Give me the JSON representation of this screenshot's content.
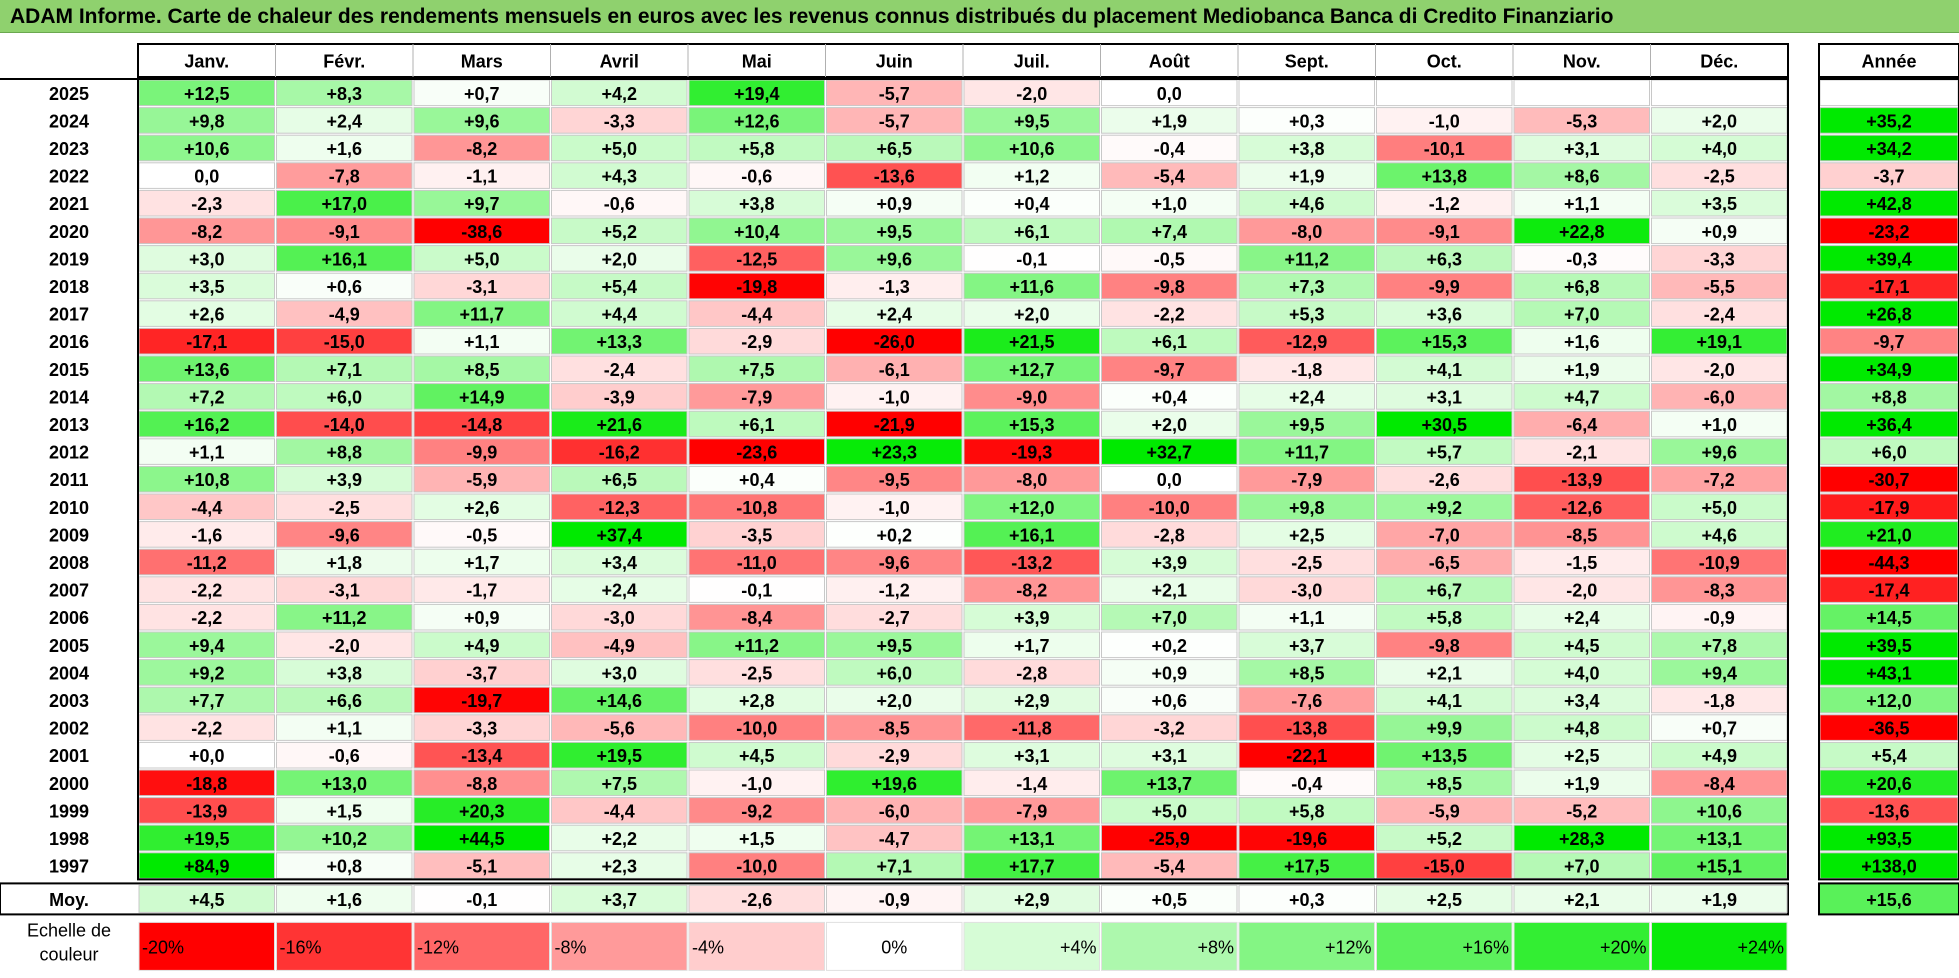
{
  "title": "ADAM Informe. Carte de chaleur des rendements mensuels en euros avec les revenus connus distribués du placement Mediobanca Banca di Credito Finanziario",
  "chart_data": {
    "type": "heatmap",
    "title": "ADAM Informe. Carte de chaleur des rendements mensuels en euros avec les revenus connus distribués du placement Mediobanca Banca di Credito Finanziario",
    "columns": [
      "Janv.",
      "Févr.",
      "Mars",
      "Avril",
      "Mai",
      "Juin",
      "Juil.",
      "Août",
      "Sept.",
      "Oct.",
      "Nov.",
      "Déc."
    ],
    "annual_header": "Année",
    "rows": [
      {
        "year": "2025",
        "months": [
          "+12,5",
          "+8,3",
          "+0,7",
          "+4,2",
          "+19,4",
          "-5,7",
          "-2,0",
          "0,0",
          "",
          "",
          "",
          ""
        ],
        "annual": ""
      },
      {
        "year": "2024",
        "months": [
          "+9,8",
          "+2,4",
          "+9,6",
          "-3,3",
          "+12,6",
          "-5,7",
          "+9,5",
          "+1,9",
          "+0,3",
          "-1,0",
          "-5,3",
          "+2,0"
        ],
        "annual": "+35,2"
      },
      {
        "year": "2023",
        "months": [
          "+10,6",
          "+1,6",
          "-8,2",
          "+5,0",
          "+5,8",
          "+6,5",
          "+10,6",
          "-0,4",
          "+3,8",
          "-10,1",
          "+3,1",
          "+4,0"
        ],
        "annual": "+34,2"
      },
      {
        "year": "2022",
        "months": [
          "0,0",
          "-7,8",
          "-1,1",
          "+4,3",
          "-0,6",
          "-13,6",
          "+1,2",
          "-5,4",
          "+1,9",
          "+13,8",
          "+8,6",
          "-2,5"
        ],
        "annual": "-3,7"
      },
      {
        "year": "2021",
        "months": [
          "-2,3",
          "+17,0",
          "+9,7",
          "-0,6",
          "+3,8",
          "+0,9",
          "+0,4",
          "+1,0",
          "+4,6",
          "-1,2",
          "+1,1",
          "+3,5"
        ],
        "annual": "+42,8"
      },
      {
        "year": "2020",
        "months": [
          "-8,2",
          "-9,1",
          "-38,6",
          "+5,2",
          "+10,4",
          "+9,5",
          "+6,1",
          "+7,4",
          "-8,0",
          "-9,1",
          "+22,8",
          "+0,9"
        ],
        "annual": "-23,2"
      },
      {
        "year": "2019",
        "months": [
          "+3,0",
          "+16,1",
          "+5,0",
          "+2,0",
          "-12,5",
          "+9,6",
          "-0,1",
          "-0,5",
          "+11,2",
          "+6,3",
          "-0,3",
          "-3,3"
        ],
        "annual": "+39,4"
      },
      {
        "year": "2018",
        "months": [
          "+3,5",
          "+0,6",
          "-3,1",
          "+5,4",
          "-19,8",
          "-1,3",
          "+11,6",
          "-9,8",
          "+7,3",
          "-9,9",
          "+6,8",
          "-5,5"
        ],
        "annual": "-17,1"
      },
      {
        "year": "2017",
        "months": [
          "+2,6",
          "-4,9",
          "+11,7",
          "+4,4",
          "-4,4",
          "+2,4",
          "+2,0",
          "-2,2",
          "+5,3",
          "+3,6",
          "+7,0",
          "-2,4"
        ],
        "annual": "+26,8"
      },
      {
        "year": "2016",
        "months": [
          "-17,1",
          "-15,0",
          "+1,1",
          "+13,3",
          "-2,9",
          "-26,0",
          "+21,5",
          "+6,1",
          "-12,9",
          "+15,3",
          "+1,6",
          "+19,1"
        ],
        "annual": "-9,7"
      },
      {
        "year": "2015",
        "months": [
          "+13,6",
          "+7,1",
          "+8,5",
          "-2,4",
          "+7,5",
          "-6,1",
          "+12,7",
          "-9,7",
          "-1,8",
          "+4,1",
          "+1,9",
          "-2,0"
        ],
        "annual": "+34,9"
      },
      {
        "year": "2014",
        "months": [
          "+7,2",
          "+6,0",
          "+14,9",
          "-3,9",
          "-7,9",
          "-1,0",
          "-9,0",
          "+0,4",
          "+2,4",
          "+3,1",
          "+4,7",
          "-6,0"
        ],
        "annual": "+8,8"
      },
      {
        "year": "2013",
        "months": [
          "+16,2",
          "-14,0",
          "-14,8",
          "+21,6",
          "+6,1",
          "-21,9",
          "+15,3",
          "+2,0",
          "+9,5",
          "+30,5",
          "-6,4",
          "+1,0"
        ],
        "annual": "+36,4"
      },
      {
        "year": "2012",
        "months": [
          "+1,1",
          "+8,8",
          "-9,9",
          "-16,2",
          "-23,6",
          "+23,3",
          "-19,3",
          "+32,7",
          "+11,7",
          "+5,7",
          "-2,1",
          "+9,6"
        ],
        "annual": "+6,0"
      },
      {
        "year": "2011",
        "months": [
          "+10,8",
          "+3,9",
          "-5,9",
          "+6,5",
          "+0,4",
          "-9,5",
          "-8,0",
          "0,0",
          "-7,9",
          "-2,6",
          "-13,9",
          "-7,2"
        ],
        "annual": "-30,7"
      },
      {
        "year": "2010",
        "months": [
          "-4,4",
          "-2,5",
          "+2,6",
          "-12,3",
          "-10,8",
          "-1,0",
          "+12,0",
          "-10,0",
          "+9,8",
          "+9,2",
          "-12,6",
          "+5,0"
        ],
        "annual": "-17,9"
      },
      {
        "year": "2009",
        "months": [
          "-1,6",
          "-9,6",
          "-0,5",
          "+37,4",
          "-3,5",
          "+0,2",
          "+16,1",
          "-2,8",
          "+2,5",
          "-7,0",
          "-8,5",
          "+4,6"
        ],
        "annual": "+21,0"
      },
      {
        "year": "2008",
        "months": [
          "-11,2",
          "+1,8",
          "+1,7",
          "+3,4",
          "-11,0",
          "-9,6",
          "-13,2",
          "+3,9",
          "-2,5",
          "-6,5",
          "-1,5",
          "-10,9"
        ],
        "annual": "-44,3"
      },
      {
        "year": "2007",
        "months": [
          "-2,2",
          "-3,1",
          "-1,7",
          "+2,4",
          "-0,1",
          "-1,2",
          "-8,2",
          "+2,1",
          "-3,0",
          "+6,7",
          "-2,0",
          "-8,3"
        ],
        "annual": "-17,4"
      },
      {
        "year": "2006",
        "months": [
          "-2,2",
          "+11,2",
          "+0,9",
          "-3,0",
          "-8,4",
          "-2,7",
          "+3,9",
          "+7,0",
          "+1,1",
          "+5,8",
          "+2,4",
          "-0,9"
        ],
        "annual": "+14,5"
      },
      {
        "year": "2005",
        "months": [
          "+9,4",
          "-2,0",
          "+4,9",
          "-4,9",
          "+11,2",
          "+9,5",
          "+1,7",
          "+0,2",
          "+3,7",
          "-9,8",
          "+4,5",
          "+7,8"
        ],
        "annual": "+39,5"
      },
      {
        "year": "2004",
        "months": [
          "+9,2",
          "+3,8",
          "-3,7",
          "+3,0",
          "-2,5",
          "+6,0",
          "-2,8",
          "+0,9",
          "+8,5",
          "+2,1",
          "+4,0",
          "+9,4"
        ],
        "annual": "+43,1"
      },
      {
        "year": "2003",
        "months": [
          "+7,7",
          "+6,6",
          "-19,7",
          "+14,6",
          "+2,8",
          "+2,0",
          "+2,9",
          "+0,6",
          "-7,6",
          "+4,1",
          "+3,4",
          "-1,8"
        ],
        "annual": "+12,0"
      },
      {
        "year": "2002",
        "months": [
          "-2,2",
          "+1,1",
          "-3,3",
          "-5,6",
          "-10,0",
          "-8,5",
          "-11,8",
          "-3,2",
          "-13,8",
          "+9,9",
          "+4,8",
          "+0,7"
        ],
        "annual": "-36,5"
      },
      {
        "year": "2001",
        "months": [
          "+0,0",
          "-0,6",
          "-13,4",
          "+19,5",
          "+4,5",
          "-2,9",
          "+3,1",
          "+3,1",
          "-22,1",
          "+13,5",
          "+2,5",
          "+4,9"
        ],
        "annual": "+5,4"
      },
      {
        "year": "2000",
        "months": [
          "-18,8",
          "+13,0",
          "-8,8",
          "+7,5",
          "-1,0",
          "+19,6",
          "-1,4",
          "+13,7",
          "-0,4",
          "+8,5",
          "+1,9",
          "-8,4"
        ],
        "annual": "+20,6"
      },
      {
        "year": "1999",
        "months": [
          "-13,9",
          "+1,5",
          "+20,3",
          "-4,4",
          "-9,2",
          "-6,0",
          "-7,9",
          "+5,0",
          "+5,8",
          "-5,9",
          "-5,2",
          "+10,6"
        ],
        "annual": "-13,6"
      },
      {
        "year": "1998",
        "months": [
          "+19,5",
          "+10,2",
          "+44,5",
          "+2,2",
          "+1,5",
          "-4,7",
          "+13,1",
          "-25,9",
          "-19,6",
          "+5,2",
          "+28,3",
          "+13,1"
        ],
        "annual": "+93,5"
      },
      {
        "year": "1997",
        "months": [
          "+84,9",
          "+0,8",
          "-5,1",
          "+2,3",
          "-10,0",
          "+7,1",
          "+17,7",
          "-5,4",
          "+17,5",
          "-15,0",
          "+7,0",
          "+15,1"
        ],
        "annual": "+138,0"
      }
    ],
    "average": {
      "label": "Moy.",
      "months": [
        "+4,5",
        "+1,6",
        "-0,1",
        "+3,7",
        "-2,6",
        "-0,9",
        "+2,9",
        "+0,5",
        "+0,3",
        "+2,5",
        "+2,1",
        "+1,9"
      ],
      "annual": "+15,6"
    },
    "legend": {
      "label": "Echelle de couleur",
      "steps": [
        {
          "text": "-20%",
          "color": "#ff0000"
        },
        {
          "text": "-16%",
          "color": "#ff3434"
        },
        {
          "text": "-12%",
          "color": "#ff6767"
        },
        {
          "text": "-8%",
          "color": "#ff9a9a"
        },
        {
          "text": "-4%",
          "color": "#ffcdcd"
        },
        {
          "text": "0%",
          "color": "#ffffff"
        },
        {
          "text": "+4%",
          "color": "#d6fcd6"
        },
        {
          "text": "+8%",
          "color": "#adf8ad"
        },
        {
          "text": "+12%",
          "color": "#84f584"
        },
        {
          "text": "+16%",
          "color": "#5cf15c"
        },
        {
          "text": "+20%",
          "color": "#33ee33"
        },
        {
          "text": "+24%",
          "color": "#0aea0a"
        }
      ]
    }
  }
}
